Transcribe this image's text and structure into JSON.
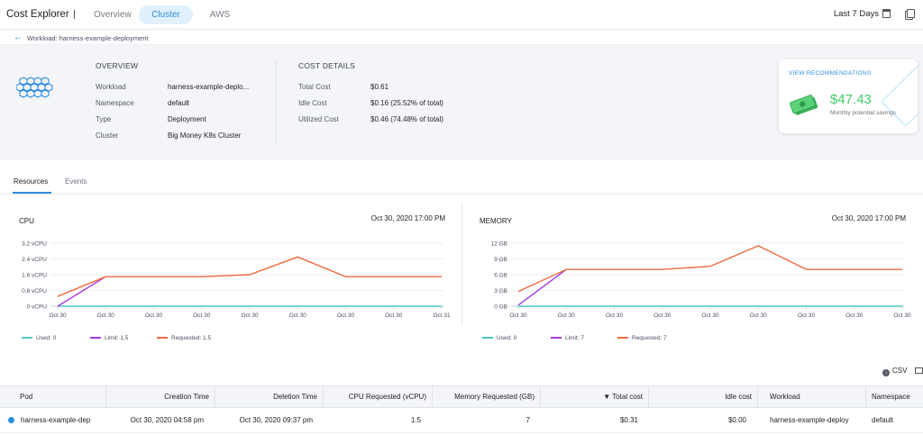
{
  "header": {
    "app_title": "Cost Explorer",
    "tabs": [
      {
        "label": "Overview",
        "active": false
      },
      {
        "label": "Cluster",
        "active": true
      },
      {
        "label": "AWS",
        "active": false
      }
    ],
    "date_range": "Last 7 Days",
    "icons": [
      "calendar-icon",
      "copy-icon"
    ]
  },
  "breadcrumb": {
    "label": "Workload: harness-example-deployment"
  },
  "overview": {
    "heading": "OVERVIEW",
    "rows": [
      {
        "label": "Workload",
        "value": "harness-example-deplo..."
      },
      {
        "label": "Namespace",
        "value": "default"
      },
      {
        "label": "Type",
        "value": "Deployment"
      },
      {
        "label": "Cluster",
        "value": "Big Money K8s Cluster"
      }
    ]
  },
  "cost_details": {
    "heading": "COST DETAILS",
    "rows": [
      {
        "label": "Total Cost",
        "value": "$0.61"
      },
      {
        "label": "Idle Cost",
        "value": "$0.16 (25.52% of total)"
      },
      {
        "label": "Utilized Cost",
        "value": "$0.46 (74.48% of total)"
      }
    ]
  },
  "recommendation": {
    "link": "VIEW RECOMMENDATIONS",
    "amount": "$47.43",
    "caption": "Monthly potential savings"
  },
  "subtabs": [
    {
      "label": "Resources",
      "active": true
    },
    {
      "label": "Events",
      "active": false
    }
  ],
  "chart_data": [
    {
      "type": "line",
      "title": "CPU",
      "timestamp": "Oct 30, 2020 17:00 PM",
      "y_ticks": [
        "0 vCPU",
        "0.8 vCPU",
        "1.6 vCPU",
        "2.4 vCPU",
        "3.2 vCPU"
      ],
      "ylim": [
        0,
        3.2
      ],
      "x": [
        "Oct 30",
        "Oct 30",
        "Oct 30",
        "Oct 30",
        "Oct 30",
        "Oct 30",
        "Oct 30",
        "Oct 30",
        "Oct 31"
      ],
      "series": [
        {
          "name": "Used: 0",
          "color": "#4fc7c9",
          "values": [
            0,
            0,
            0,
            0,
            0,
            0,
            0,
            0,
            0
          ]
        },
        {
          "name": "Limit: 1.5",
          "color": "#a23bd6",
          "values": [
            0.0,
            1.5,
            1.5,
            1.5,
            1.6,
            2.5,
            1.5,
            1.5,
            1.5
          ]
        },
        {
          "name": "Requested: 1.5",
          "color": "#f06a3f",
          "values": [
            0.5,
            1.5,
            1.5,
            1.5,
            1.6,
            2.5,
            1.5,
            1.5,
            1.5
          ]
        }
      ],
      "limit_rise_only": true
    },
    {
      "type": "line",
      "title": "MEMORY",
      "timestamp": "Oct 30, 2020 17:00 PM",
      "y_ticks": [
        "0 GB",
        "3 GB",
        "6 GB",
        "9 GB",
        "12 GB"
      ],
      "ylim": [
        0,
        12
      ],
      "x": [
        "Oct 30",
        "Oct 30",
        "Oct 30",
        "Oct 30",
        "Oct 30",
        "Oct 30",
        "Oct 30",
        "Oct 30",
        "Oct 30"
      ],
      "series": [
        {
          "name": "Used: 0",
          "color": "#4fc7c9",
          "values": [
            0,
            0,
            0,
            0,
            0,
            0,
            0,
            0,
            0
          ]
        },
        {
          "name": "Limit: 7",
          "color": "#a23bd6",
          "values": [
            0.2,
            7,
            7,
            7,
            7.6,
            11.5,
            7,
            7,
            7
          ]
        },
        {
          "name": "Requested: 7",
          "color": "#f06a3f",
          "values": [
            2.8,
            7,
            7,
            7,
            7.6,
            11.5,
            7,
            7,
            7
          ]
        }
      ],
      "limit_rise_only": true
    }
  ],
  "table": {
    "csv_label": "CSV",
    "columns": [
      "Pod",
      "Creation Time",
      "Deletion Time",
      "CPU Requested (vCPU)",
      "Memory Requested (GB)",
      "▼ Total cost",
      "Idle cost",
      "Workload",
      "Namespace"
    ],
    "rows": [
      {
        "pod": "harness-example-dep",
        "creation": "Oct 30, 2020 04:58 pm",
        "deletion": "Oct 30, 2020 09:37 pm",
        "cpu": "1.5",
        "memory": "7",
        "total": "$0.31",
        "idle": "$0.00",
        "workload": "harness-example-deploy",
        "namespace": "default"
      }
    ]
  }
}
